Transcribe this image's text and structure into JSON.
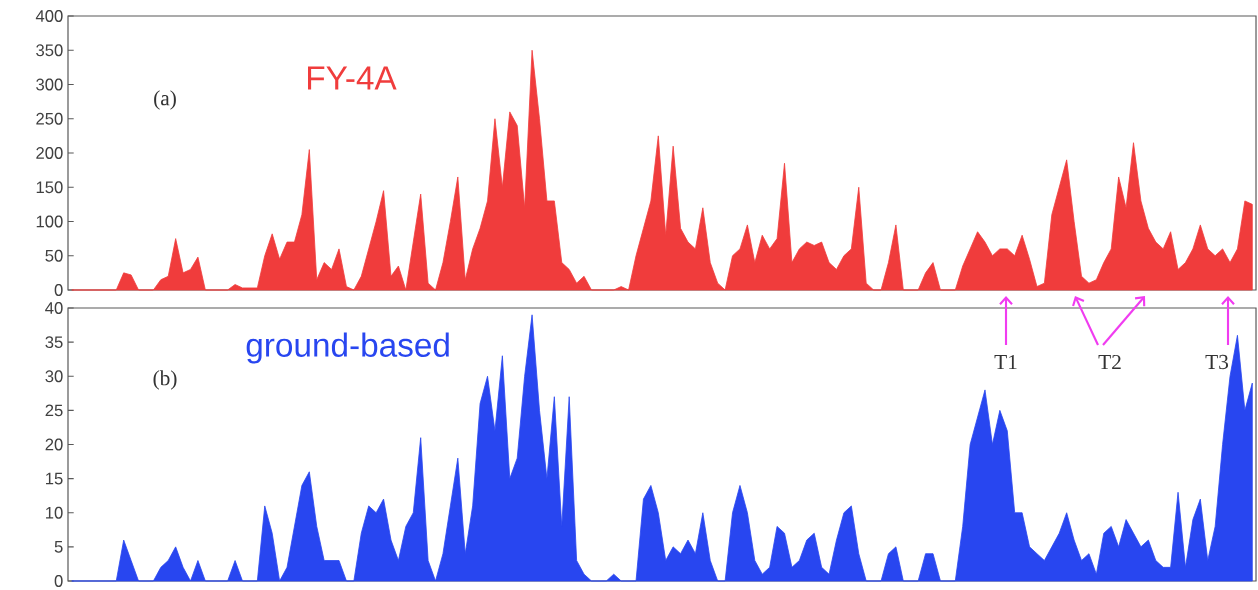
{
  "chart_data": [
    {
      "type": "area",
      "tick_labels": "y",
      "ylim": [
        0,
        400
      ],
      "yticks": [
        0,
        50,
        100,
        150,
        200,
        250,
        300,
        350,
        400
      ],
      "annotations": [
        "(a)"
      ],
      "categories": [
        null,
        null,
        null,
        null,
        null,
        null,
        null,
        null,
        null,
        null,
        null,
        null,
        null,
        null,
        null,
        null,
        null,
        null,
        null,
        null,
        null,
        null,
        null,
        null,
        null,
        null,
        null,
        null,
        null,
        null,
        null,
        null,
        null,
        null,
        null,
        null,
        null,
        null,
        null,
        null,
        null,
        null,
        null,
        null,
        null,
        null,
        null,
        null,
        null,
        null,
        null,
        null,
        null,
        null,
        null,
        null,
        null,
        null,
        null,
        null,
        null,
        null,
        null,
        null,
        null,
        null,
        null,
        null,
        null,
        null,
        null,
        null,
        null,
        null,
        null,
        null,
        null,
        null,
        null,
        null,
        null,
        null,
        null,
        null,
        null,
        null,
        null,
        null,
        null,
        null,
        null,
        null,
        null,
        null,
        null,
        null,
        null,
        null,
        null,
        null,
        null,
        null,
        null,
        null,
        null,
        null,
        null,
        null,
        null,
        null,
        null,
        null,
        null,
        null,
        null,
        null,
        null,
        null,
        null,
        null,
        null,
        null,
        null,
        null,
        null,
        null,
        null,
        null,
        null,
        null,
        null,
        null,
        null,
        null,
        null,
        null,
        null,
        null,
        null,
        null,
        null,
        null,
        null,
        null,
        null,
        null,
        null,
        null,
        null,
        null,
        null,
        null,
        null,
        null,
        null,
        null,
        null,
        null,
        null,
        null
      ],
      "series": [
        {
          "name": "FY-4A",
          "color": "#f03c3c",
          "values": [
            0,
            0,
            0,
            0,
            0,
            0,
            0,
            25,
            22,
            0,
            0,
            0,
            15,
            20,
            75,
            25,
            30,
            48,
            0,
            0,
            0,
            0,
            8,
            3,
            3,
            3,
            50,
            82,
            45,
            70,
            70,
            110,
            205,
            15,
            40,
            30,
            60,
            5,
            0,
            20,
            60,
            100,
            145,
            20,
            35,
            0,
            70,
            140,
            10,
            0,
            40,
            100,
            165,
            15,
            60,
            90,
            130,
            250,
            150,
            260,
            240,
            120,
            350,
            250,
            130,
            130,
            40,
            30,
            10,
            20,
            0,
            0,
            0,
            0,
            5,
            0,
            50,
            90,
            130,
            225,
            80,
            210,
            90,
            70,
            60,
            120,
            40,
            10,
            0,
            50,
            60,
            95,
            40,
            80,
            60,
            75,
            185,
            40,
            60,
            70,
            65,
            70,
            40,
            30,
            50,
            60,
            150,
            10,
            0,
            0,
            40,
            95,
            0,
            0,
            0,
            25,
            40,
            0,
            0,
            0,
            35,
            60,
            85,
            70,
            50,
            60,
            60,
            50,
            80,
            45,
            5,
            10,
            110,
            150,
            190,
            100,
            20,
            10,
            15,
            40,
            60,
            165,
            120,
            215,
            130,
            90,
            70,
            60,
            85,
            30,
            40,
            60,
            95,
            60,
            50,
            60,
            40,
            60,
            130,
            125
          ]
        }
      ]
    },
    {
      "type": "area",
      "tick_labels": "y",
      "ylim": [
        0,
        40
      ],
      "yticks": [
        0,
        5,
        10,
        15,
        20,
        25,
        30,
        35,
        40
      ],
      "annotations": [
        "(b)",
        "T1",
        "T2",
        "T3"
      ],
      "categories": [
        null,
        null,
        null,
        null,
        null,
        null,
        null,
        null,
        null,
        null,
        null,
        null,
        null,
        null,
        null,
        null,
        null,
        null,
        null,
        null,
        null,
        null,
        null,
        null,
        null,
        null,
        null,
        null,
        null,
        null,
        null,
        null,
        null,
        null,
        null,
        null,
        null,
        null,
        null,
        null,
        null,
        null,
        null,
        null,
        null,
        null,
        null,
        null,
        null,
        null,
        null,
        null,
        null,
        null,
        null,
        null,
        null,
        null,
        null,
        null,
        null,
        null,
        null,
        null,
        null,
        null,
        null,
        null,
        null,
        null,
        null,
        null,
        null,
        null,
        null,
        null,
        null,
        null,
        null,
        null,
        null,
        null,
        null,
        null,
        null,
        null,
        null,
        null,
        null,
        null,
        null,
        null,
        null,
        null,
        null,
        null,
        null,
        null,
        null,
        null,
        null,
        null,
        null,
        null,
        null,
        null,
        null,
        null,
        null,
        null,
        null,
        null,
        null,
        null,
        null,
        null,
        null,
        null,
        null,
        null,
        null,
        null,
        null,
        null,
        null,
        null,
        null,
        null,
        null,
        null,
        null,
        null,
        null,
        null,
        null,
        null,
        null,
        null,
        null,
        null,
        null,
        null,
        null,
        null,
        null,
        null,
        null,
        null,
        null,
        null,
        null,
        null,
        null,
        null,
        null,
        null,
        null,
        null,
        null,
        null
      ],
      "series": [
        {
          "name": "ground-based",
          "color": "#2846f0",
          "values": [
            0,
            0,
            0,
            0,
            0,
            0,
            0,
            6,
            3,
            0,
            0,
            0,
            2,
            3,
            5,
            2,
            0,
            3,
            0,
            0,
            0,
            0,
            3,
            0,
            0,
            0,
            11,
            7,
            0,
            2,
            8,
            14,
            16,
            8,
            3,
            3,
            3,
            0,
            0,
            7,
            11,
            10,
            12,
            6,
            3,
            8,
            10,
            21,
            3,
            0,
            4,
            11,
            18,
            4,
            11,
            26,
            30,
            22,
            33,
            15,
            18,
            30,
            39,
            25,
            15,
            27,
            8,
            27,
            3,
            1,
            0,
            0,
            0,
            1,
            0,
            0,
            0,
            12,
            14,
            10,
            3,
            5,
            4,
            6,
            4,
            10,
            3,
            0,
            0,
            10,
            14,
            10,
            3,
            1,
            2,
            8,
            7,
            2,
            3,
            6,
            7,
            2,
            1,
            6,
            10,
            11,
            4,
            0,
            0,
            0,
            4,
            5,
            0,
            0,
            0,
            4,
            4,
            0,
            0,
            0,
            8,
            20,
            24,
            28,
            20,
            25,
            22,
            10,
            10,
            5,
            4,
            3,
            5,
            7,
            10,
            6,
            3,
            4,
            1,
            7,
            8,
            5,
            9,
            7,
            5,
            6,
            3,
            2,
            2,
            13,
            2,
            9,
            12,
            3,
            8,
            20,
            30,
            36,
            25,
            29
          ]
        }
      ]
    }
  ]
}
